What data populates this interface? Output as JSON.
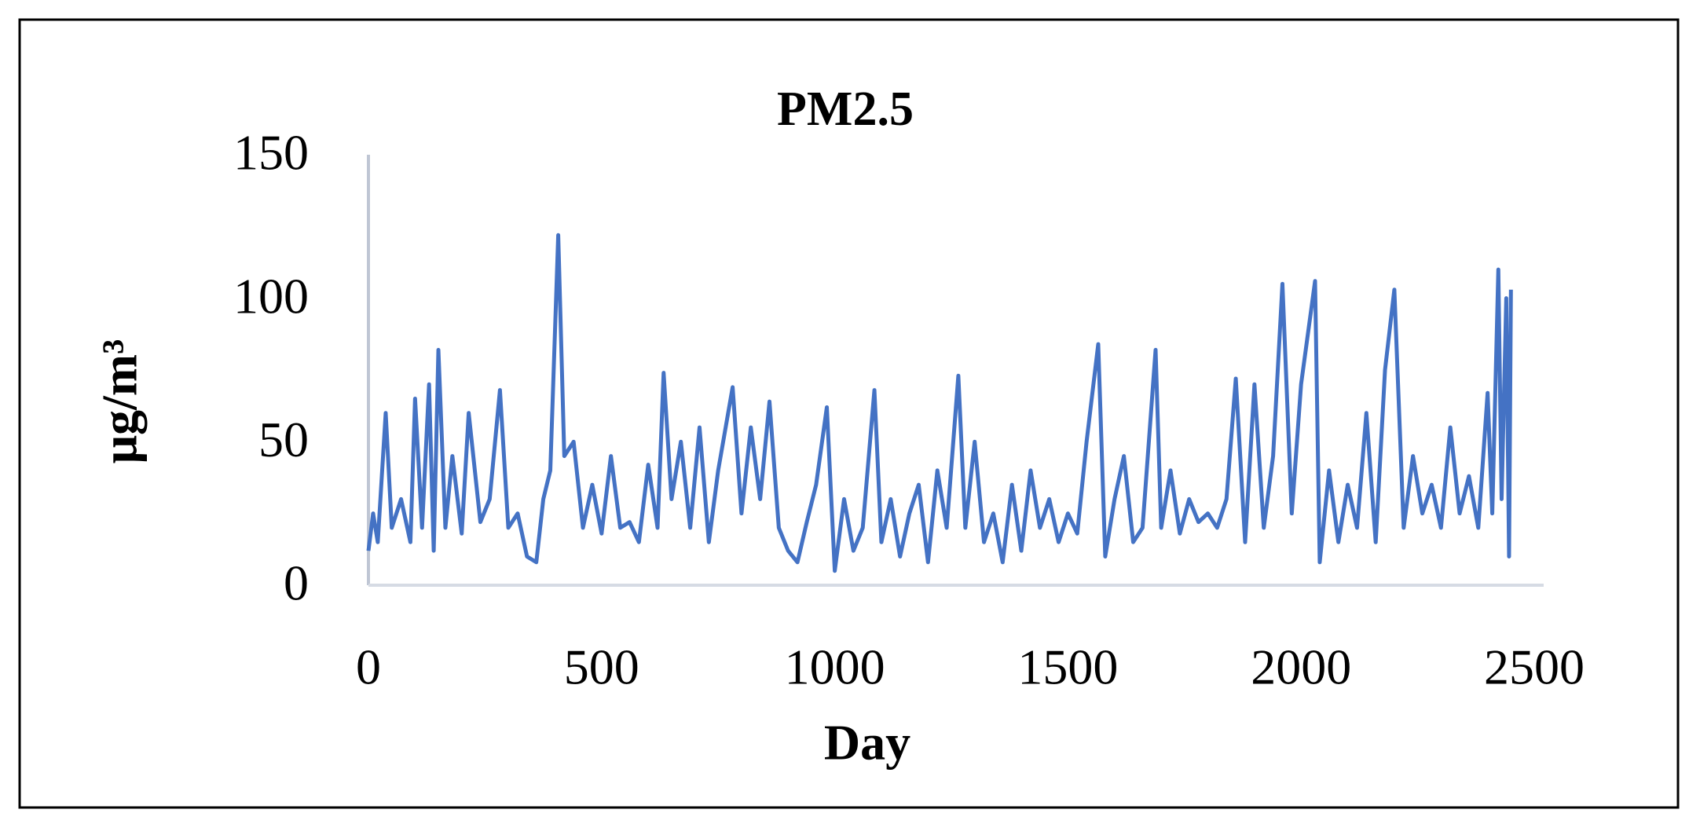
{
  "chart_data": {
    "type": "line",
    "title": "PM2.5",
    "x_label": "Day",
    "y_label": "μg/m³",
    "x": [
      0,
      10,
      20,
      37,
      50,
      70,
      90,
      100,
      115,
      130,
      140,
      150,
      165,
      180,
      200,
      215,
      240,
      260,
      282,
      300,
      320,
      340,
      360,
      375,
      390,
      407,
      420,
      440,
      460,
      480,
      500,
      520,
      540,
      560,
      580,
      600,
      620,
      633,
      650,
      670,
      690,
      710,
      730,
      750,
      781,
      800,
      820,
      840,
      860,
      880,
      900,
      920,
      940,
      960,
      983,
      1000,
      1020,
      1040,
      1060,
      1085,
      1100,
      1120,
      1140,
      1160,
      1180,
      1200,
      1220,
      1240,
      1265,
      1280,
      1300,
      1320,
      1340,
      1360,
      1380,
      1400,
      1420,
      1440,
      1460,
      1480,
      1500,
      1520,
      1540,
      1565,
      1580,
      1600,
      1620,
      1640,
      1660,
      1688,
      1700,
      1720,
      1740,
      1760,
      1780,
      1800,
      1820,
      1840,
      1860,
      1880,
      1900,
      1920,
      1940,
      1960,
      1980,
      2000,
      2030,
      2040,
      2060,
      2080,
      2100,
      2120,
      2140,
      2160,
      2180,
      2200,
      2220,
      2240,
      2260,
      2280,
      2300,
      2320,
      2340,
      2360,
      2380,
      2400,
      2410,
      2423,
      2430,
      2440,
      2446,
      2450
    ],
    "values": [
      12,
      25,
      15,
      60,
      20,
      30,
      15,
      65,
      20,
      70,
      12,
      82,
      20,
      45,
      18,
      60,
      22,
      30,
      68,
      20,
      25,
      10,
      8,
      30,
      40,
      122,
      45,
      50,
      20,
      35,
      18,
      45,
      20,
      22,
      15,
      42,
      20,
      74,
      30,
      50,
      20,
      55,
      15,
      40,
      69,
      25,
      55,
      30,
      64,
      20,
      12,
      8,
      22,
      35,
      62,
      5,
      30,
      12,
      20,
      68,
      15,
      30,
      10,
      25,
      35,
      8,
      40,
      20,
      73,
      20,
      50,
      15,
      25,
      8,
      35,
      12,
      40,
      20,
      30,
      15,
      25,
      18,
      50,
      84,
      10,
      30,
      45,
      15,
      20,
      82,
      20,
      40,
      18,
      30,
      22,
      25,
      20,
      30,
      72,
      15,
      70,
      20,
      45,
      105,
      25,
      70,
      106,
      8,
      40,
      15,
      35,
      20,
      60,
      15,
      75,
      103,
      20,
      45,
      25,
      35,
      20,
      55,
      25,
      38,
      20,
      67,
      25,
      110,
      30,
      100,
      10,
      103
    ],
    "color": "#4472c4",
    "xlim": [
      0,
      2500
    ],
    "ylim": [
      0,
      150
    ],
    "xticks": [
      0,
      500,
      1000,
      1500,
      2000,
      2500
    ],
    "yticks": [
      0,
      50,
      100,
      150
    ],
    "grid": false
  }
}
